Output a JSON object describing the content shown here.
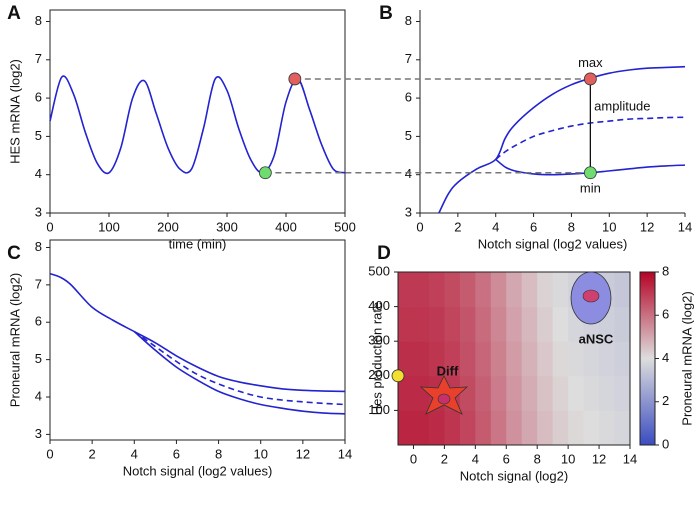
{
  "chart_data": [
    {
      "type": "line",
      "panel": "A",
      "xlabel": "time (min)",
      "ylabel": "HES mRNA (log2)",
      "xlim": [
        0,
        500
      ],
      "ylim": [
        3,
        8.3
      ],
      "xticks": [
        0,
        100,
        200,
        300,
        400,
        500
      ],
      "yticks": [
        3,
        4,
        5,
        6,
        7,
        8
      ],
      "box": true,
      "x": [
        0,
        20,
        40,
        60,
        80,
        100,
        120,
        140,
        160,
        180,
        200,
        220,
        240,
        260,
        280,
        300,
        320,
        340,
        360,
        380,
        400,
        420,
        440,
        460,
        480,
        500
      ],
      "series": [
        {
          "color": "#2323d0",
          "values": [
            5.4,
            6.55,
            6.1,
            5.1,
            4.3,
            4.05,
            4.7,
            6.0,
            6.45,
            5.6,
            4.7,
            4.15,
            4.15,
            5.2,
            6.5,
            6.2,
            5.2,
            4.4,
            4.05,
            4.5,
            5.9,
            6.5,
            5.7,
            4.8,
            4.15,
            4.05
          ]
        }
      ],
      "points": [
        {
          "x": 365,
          "y": 4.05,
          "color": "#6fdc6f"
        },
        {
          "x": 415,
          "y": 6.5,
          "color": "#e06060"
        }
      ]
    },
    {
      "type": "line",
      "panel": "B",
      "xlabel": "Notch signal (log2 values)",
      "xlim": [
        0,
        14
      ],
      "ylim": [
        3,
        8.3
      ],
      "xticks": [
        0,
        2,
        4,
        6,
        8,
        10,
        12,
        14
      ],
      "yticks": [
        3,
        4,
        5,
        6,
        7,
        8
      ],
      "box": false,
      "series": [
        {
          "color": "#2323d0",
          "x": [
            1,
            1.5,
            2,
            3,
            4,
            4.5,
            5,
            6,
            7,
            8,
            9,
            10,
            11,
            12,
            13,
            14
          ],
          "values": [
            3.0,
            3.5,
            3.8,
            4.15,
            4.4,
            4.95,
            5.3,
            5.75,
            6.1,
            6.35,
            6.52,
            6.65,
            6.73,
            6.78,
            6.8,
            6.82
          ]
        },
        {
          "color": "#2323d0",
          "x": [
            4,
            4.5,
            5,
            6,
            7,
            8,
            9,
            10,
            11,
            12,
            13,
            14
          ],
          "values": [
            4.4,
            4.2,
            4.1,
            4.02,
            4.0,
            4.02,
            4.05,
            4.1,
            4.15,
            4.2,
            4.23,
            4.25
          ]
        },
        {
          "color": "#2323d0",
          "dash": true,
          "x": [
            4,
            4.5,
            5,
            6,
            7,
            8,
            9,
            10,
            11,
            12,
            13,
            14
          ],
          "values": [
            4.4,
            4.6,
            4.75,
            5.0,
            5.15,
            5.27,
            5.35,
            5.4,
            5.45,
            5.47,
            5.49,
            5.5
          ]
        }
      ],
      "points": [
        {
          "x": 9,
          "y": 4.05,
          "color": "#6fdc6f"
        },
        {
          "x": 9,
          "y": 6.5,
          "color": "#e06060"
        }
      ],
      "annotations": [
        {
          "text": "max",
          "x": 9,
          "y": 6.9
        },
        {
          "text": "amplitude",
          "x": 9.2,
          "y": 5.77
        },
        {
          "text": "min",
          "x": 9,
          "y": 3.62
        }
      ]
    },
    {
      "type": "line",
      "panel": "C",
      "xlabel": "Notch signal (log2 values)",
      "ylabel": "Proneural mRNA (log2)",
      "xlim": [
        0,
        14
      ],
      "ylim": [
        2.85,
        8.2
      ],
      "xticks": [
        0,
        2,
        4,
        6,
        8,
        10,
        12,
        14
      ],
      "yticks": [
        3,
        4,
        5,
        6,
        7,
        8
      ],
      "box": true,
      "series": [
        {
          "color": "#2323d0",
          "x": [
            0,
            0.5,
            1,
            2,
            3,
            4,
            5,
            6,
            7,
            8,
            9,
            10,
            11,
            12,
            13,
            14
          ],
          "values": [
            7.3,
            7.2,
            7.0,
            6.4,
            6.05,
            5.75,
            5.45,
            5.1,
            4.8,
            4.55,
            4.4,
            4.3,
            4.22,
            4.18,
            4.16,
            4.15
          ]
        },
        {
          "color": "#2323d0",
          "x": [
            4,
            5,
            6,
            7,
            8,
            9,
            10,
            11,
            12,
            13,
            14
          ],
          "values": [
            5.75,
            5.25,
            4.8,
            4.45,
            4.15,
            3.95,
            3.8,
            3.7,
            3.62,
            3.57,
            3.55
          ]
        },
        {
          "color": "#2323d0",
          "dash": true,
          "x": [
            4,
            5,
            6,
            7,
            8,
            9,
            10,
            11,
            12,
            13,
            14
          ],
          "values": [
            5.75,
            5.35,
            4.95,
            4.6,
            4.35,
            4.15,
            4.0,
            3.92,
            3.87,
            3.83,
            3.8
          ]
        }
      ]
    },
    {
      "type": "heatmap",
      "panel": "D",
      "xlabel": "Notch signal (log2)",
      "ylabel": "Hes production rate",
      "colorbar_label": "Proneural mRNA (log2)",
      "xlim": [
        -1,
        14
      ],
      "ylim": [
        0,
        500
      ],
      "xticks": [
        0,
        2,
        4,
        6,
        8,
        10,
        12,
        14
      ],
      "yticks": [
        100,
        200,
        300,
        400,
        500
      ],
      "clim": [
        0,
        8
      ],
      "cticks": [
        0,
        2,
        4,
        6,
        8
      ],
      "cmap": [
        "#3b4cc0",
        "#dddddd",
        "#b40426"
      ],
      "x": [
        -0.5,
        0.5,
        1.5,
        2.5,
        3.5,
        4.5,
        5.5,
        6.5,
        7.5,
        8.5,
        9.5,
        10.5,
        11.5,
        12.5,
        13.5
      ],
      "y": [
        50,
        150,
        250,
        350,
        450
      ],
      "z": [
        [
          7.4,
          7.4,
          7.3,
          7.1,
          6.8,
          6.4,
          5.9,
          5.4,
          5.0,
          4.6,
          4.3,
          4.1,
          4.0,
          3.9,
          3.8
        ],
        [
          7.3,
          7.3,
          7.2,
          7.0,
          6.7,
          6.3,
          5.8,
          5.3,
          4.9,
          4.5,
          4.2,
          4.0,
          3.9,
          3.8,
          3.7
        ],
        [
          7.2,
          7.2,
          7.1,
          6.9,
          6.6,
          6.2,
          5.7,
          5.2,
          4.8,
          4.4,
          4.1,
          3.9,
          3.8,
          3.7,
          3.6
        ],
        [
          7.1,
          7.1,
          7.0,
          6.8,
          6.5,
          6.1,
          5.6,
          5.1,
          4.7,
          4.3,
          4.0,
          3.8,
          3.7,
          3.6,
          3.5
        ],
        [
          7.0,
          7.0,
          6.9,
          6.7,
          6.4,
          6.0,
          5.5,
          5.0,
          4.6,
          4.2,
          3.9,
          3.7,
          3.6,
          3.5,
          3.4
        ]
      ],
      "points": [
        {
          "x": -1,
          "y": 200,
          "color": "#f2e030"
        }
      ],
      "annotations": [
        {
          "text": "Diff",
          "x": 2.2,
          "y": 211
        },
        {
          "text": "aNSC",
          "x": 11.8,
          "y": 303
        }
      ]
    }
  ]
}
